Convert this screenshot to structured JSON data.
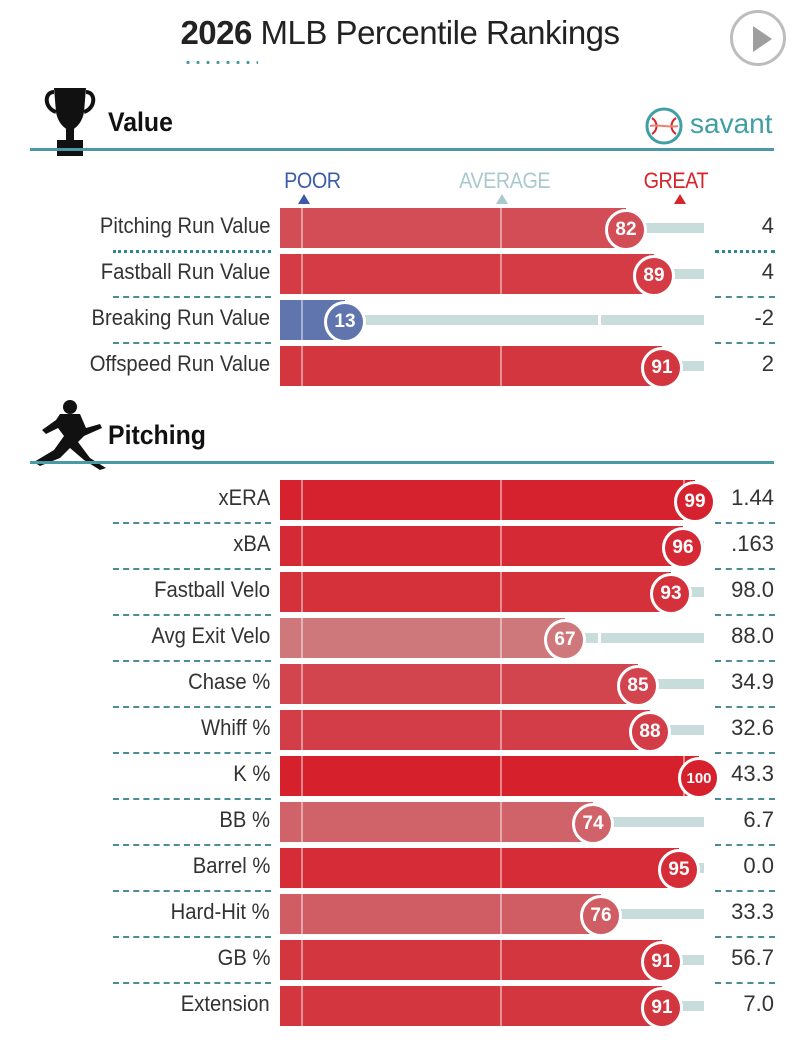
{
  "header": {
    "year": "2026",
    "title": "MLB Percentile Rankings",
    "play_button": "play-icon"
  },
  "brand": {
    "name": "savant",
    "color": "#3f9ea6",
    "icon": "baseball-icon"
  },
  "scale": {
    "poor": "POOR",
    "average": "AVERAGE",
    "great": "GREAT",
    "poor_color": "#3b5ba9",
    "average_color": "#a9c9cf",
    "great_color": "#d8232a"
  },
  "sections": [
    {
      "title": "Value",
      "icon": "trophy-icon"
    },
    {
      "title": "Pitching",
      "icon": "pitcher-icon"
    }
  ],
  "chart_data": {
    "type": "bar",
    "title": "2026 MLB Percentile Rankings",
    "xlim": [
      0,
      100
    ],
    "groups": [
      {
        "name": "Value",
        "rows": [
          {
            "label": "Pitching Run Value",
            "percentile": 82,
            "value": "4"
          },
          {
            "label": "Fastball Run Value",
            "percentile": 89,
            "value": "4"
          },
          {
            "label": "Breaking Run Value",
            "percentile": 13,
            "value": "-2"
          },
          {
            "label": "Offspeed Run Value",
            "percentile": 91,
            "value": "2"
          }
        ]
      },
      {
        "name": "Pitching",
        "rows": [
          {
            "label": "xERA",
            "percentile": 99,
            "value": "1.44"
          },
          {
            "label": "xBA",
            "percentile": 96,
            "value": ".163"
          },
          {
            "label": "Fastball Velo",
            "percentile": 93,
            "value": "98.0"
          },
          {
            "label": "Avg Exit Velo",
            "percentile": 67,
            "value": "88.0"
          },
          {
            "label": "Chase %",
            "percentile": 85,
            "value": "34.9"
          },
          {
            "label": "Whiff %",
            "percentile": 88,
            "value": "32.6"
          },
          {
            "label": "K %",
            "percentile": 100,
            "value": "43.3"
          },
          {
            "label": "BB %",
            "percentile": 74,
            "value": "6.7"
          },
          {
            "label": "Barrel %",
            "percentile": 95,
            "value": "0.0"
          },
          {
            "label": "Hard-Hit %",
            "percentile": 76,
            "value": "33.3"
          },
          {
            "label": "GB %",
            "percentile": 91,
            "value": "56.7"
          },
          {
            "label": "Extension",
            "percentile": 91,
            "value": "7.0"
          }
        ]
      }
    ]
  }
}
